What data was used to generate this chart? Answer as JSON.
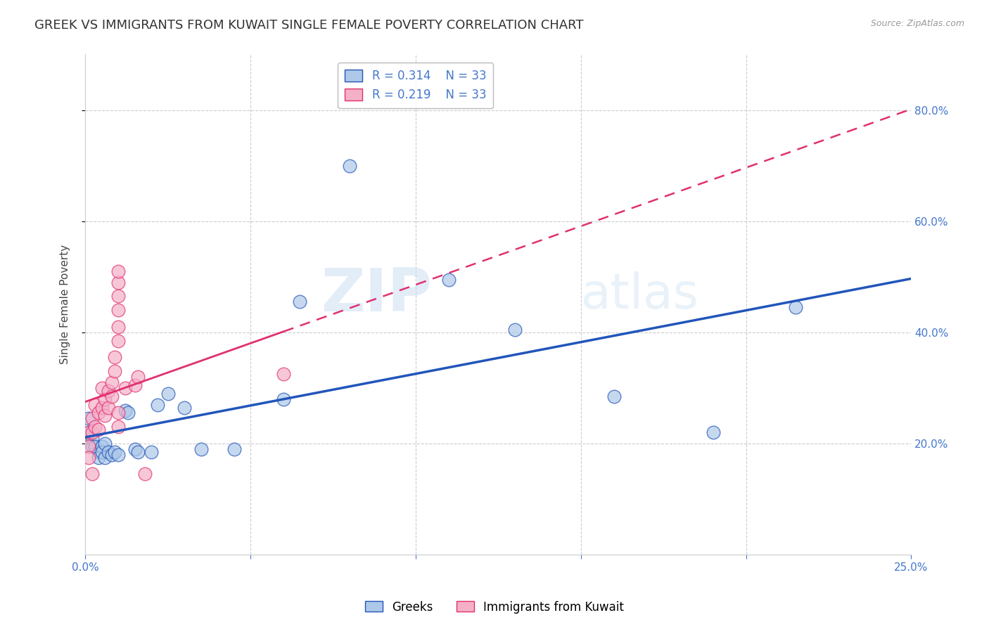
{
  "title": "GREEK VS IMMIGRANTS FROM KUWAIT SINGLE FEMALE POVERTY CORRELATION CHART",
  "source": "Source: ZipAtlas.com",
  "ylabel": "Single Female Poverty",
  "legend_blue_R": "R = 0.314",
  "legend_blue_N": "N = 33",
  "legend_pink_R": "R = 0.219",
  "legend_pink_N": "N = 33",
  "legend_label_blue": "Greeks",
  "legend_label_pink": "Immigrants from Kuwait",
  "blue_color": "#adc8e8",
  "blue_line_color": "#2255bb",
  "pink_color": "#f5b0c8",
  "pink_line_color": "#e03070",
  "background_color": "#ffffff",
  "grid_color": "#cccccc",
  "axis_color": "#4477cc",
  "xlim": [
    0.0,
    0.25
  ],
  "ylim": [
    0.0,
    0.9
  ],
  "blue_points_x": [
    0.001,
    0.001,
    0.002,
    0.002,
    0.003,
    0.004,
    0.004,
    0.005,
    0.005,
    0.006,
    0.006,
    0.007,
    0.008,
    0.009,
    0.01,
    0.012,
    0.013,
    0.015,
    0.016,
    0.02,
    0.022,
    0.025,
    0.03,
    0.035,
    0.045,
    0.06,
    0.065,
    0.08,
    0.11,
    0.13,
    0.16,
    0.19,
    0.215
  ],
  "blue_points_y": [
    0.245,
    0.22,
    0.21,
    0.195,
    0.195,
    0.185,
    0.175,
    0.195,
    0.185,
    0.2,
    0.175,
    0.185,
    0.18,
    0.185,
    0.18,
    0.26,
    0.255,
    0.19,
    0.185,
    0.185,
    0.27,
    0.29,
    0.265,
    0.19,
    0.19,
    0.28,
    0.455,
    0.7,
    0.495,
    0.405,
    0.285,
    0.22,
    0.445
  ],
  "pink_points_x": [
    0.001,
    0.001,
    0.001,
    0.002,
    0.002,
    0.002,
    0.003,
    0.003,
    0.004,
    0.004,
    0.005,
    0.005,
    0.006,
    0.006,
    0.007,
    0.007,
    0.008,
    0.008,
    0.009,
    0.009,
    0.01,
    0.01,
    0.01,
    0.01,
    0.01,
    0.01,
    0.01,
    0.01,
    0.012,
    0.015,
    0.016,
    0.018,
    0.06
  ],
  "pink_points_y": [
    0.22,
    0.195,
    0.175,
    0.245,
    0.22,
    0.145,
    0.27,
    0.23,
    0.255,
    0.225,
    0.3,
    0.265,
    0.28,
    0.25,
    0.295,
    0.265,
    0.31,
    0.285,
    0.355,
    0.33,
    0.385,
    0.41,
    0.44,
    0.465,
    0.49,
    0.51,
    0.255,
    0.23,
    0.3,
    0.305,
    0.32,
    0.145,
    0.325
  ],
  "watermark_zip": "ZIP",
  "watermark_atlas": "atlas",
  "title_fontsize": 13,
  "axis_label_fontsize": 11,
  "tick_fontsize": 11,
  "legend_fontsize": 12
}
